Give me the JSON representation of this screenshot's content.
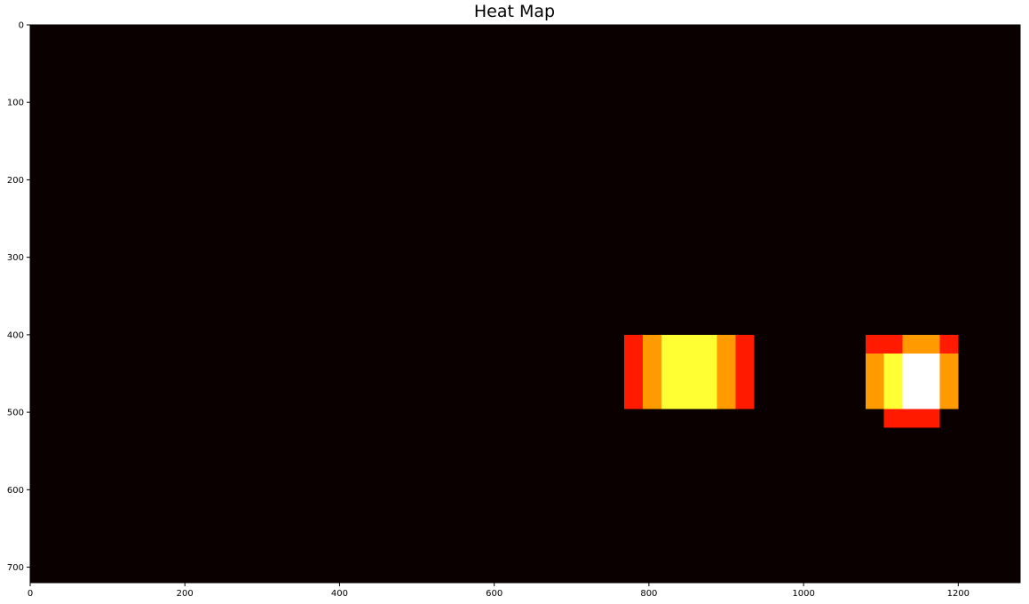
{
  "chart_data": {
    "type": "heatmap",
    "title": "Heat Map",
    "xlabel": "",
    "ylabel": "",
    "xlim": [
      0,
      1280
    ],
    "ylim": [
      720,
      0
    ],
    "x_ticks": [
      0,
      200,
      400,
      600,
      800,
      1000,
      1200
    ],
    "y_ticks": [
      0,
      100,
      200,
      300,
      400,
      500,
      600,
      700
    ],
    "grid": false,
    "colormap": "hot",
    "background_color": "#0b0000",
    "level_colors": {
      "0": "#0b0000",
      "1": "#ff1a00",
      "2": "#ff9a00",
      "3": "#ffff33",
      "4": "#ffffff"
    },
    "cells": [
      {
        "x0": 768,
        "x1": 792,
        "y0": 400,
        "y1": 496,
        "level": 1
      },
      {
        "x0": 792,
        "x1": 816,
        "y0": 400,
        "y1": 496,
        "level": 2
      },
      {
        "x0": 816,
        "x1": 888,
        "y0": 400,
        "y1": 496,
        "level": 3
      },
      {
        "x0": 888,
        "x1": 912,
        "y0": 400,
        "y1": 496,
        "level": 2
      },
      {
        "x0": 912,
        "x1": 936,
        "y0": 400,
        "y1": 496,
        "level": 1
      },
      {
        "x0": 1080,
        "x1": 1128,
        "y0": 400,
        "y1": 424,
        "level": 1
      },
      {
        "x0": 1128,
        "x1": 1176,
        "y0": 400,
        "y1": 424,
        "level": 2
      },
      {
        "x0": 1176,
        "x1": 1200,
        "y0": 400,
        "y1": 424,
        "level": 1
      },
      {
        "x0": 1080,
        "x1": 1104,
        "y0": 424,
        "y1": 496,
        "level": 2
      },
      {
        "x0": 1104,
        "x1": 1128,
        "y0": 424,
        "y1": 496,
        "level": 3
      },
      {
        "x0": 1128,
        "x1": 1176,
        "y0": 424,
        "y1": 496,
        "level": 4
      },
      {
        "x0": 1176,
        "x1": 1200,
        "y0": 424,
        "y1": 496,
        "level": 2
      },
      {
        "x0": 1104,
        "x1": 1176,
        "y0": 496,
        "y1": 520,
        "level": 1
      }
    ]
  }
}
